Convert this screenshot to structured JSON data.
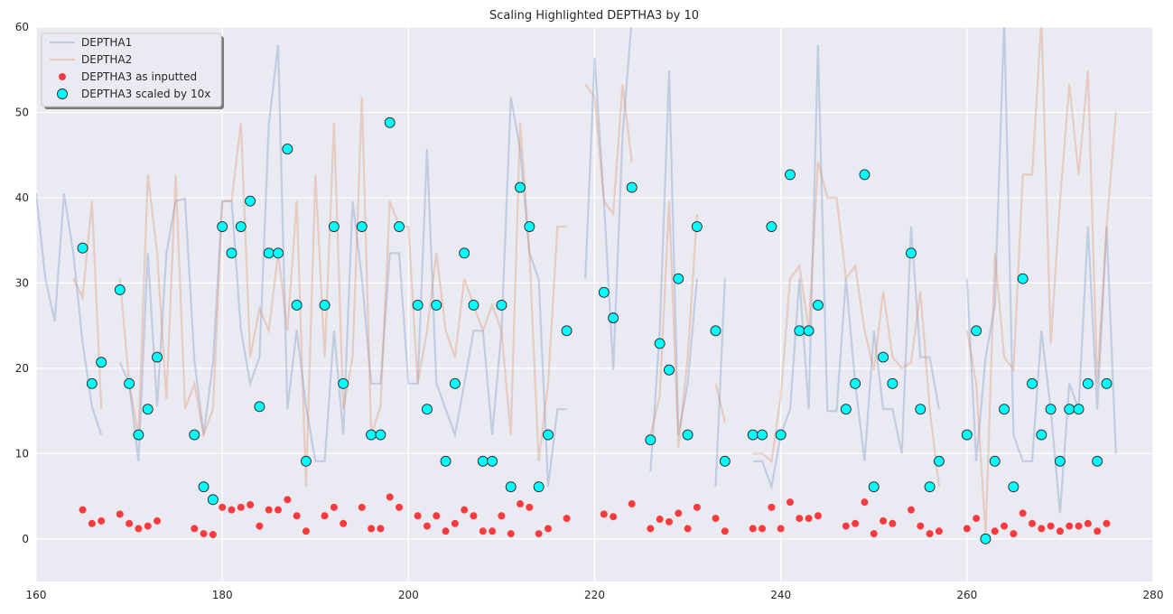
{
  "chart_data": {
    "type": "line",
    "title": "Scaling Highlighted DEPTHA3 by 10",
    "xlabel": "",
    "ylabel": "",
    "xlim": [
      160,
      280
    ],
    "ylim": [
      -5,
      60
    ],
    "xticks": [
      160,
      180,
      200,
      220,
      240,
      260,
      280
    ],
    "yticks": [
      0,
      10,
      20,
      30,
      40,
      50,
      60
    ],
    "grid": true,
    "legend_position": "top-left",
    "series": [
      {
        "name": "DEPTHA1",
        "kind": "line",
        "color": "#4c72b0",
        "x": [
          160,
          161,
          162,
          163,
          164,
          165,
          166,
          167,
          null,
          169,
          170,
          171,
          172,
          173,
          174,
          175,
          176,
          177,
          178,
          179,
          180,
          181,
          182,
          183,
          184,
          185,
          186,
          187,
          188,
          189,
          190,
          191,
          192,
          193,
          194,
          195,
          196,
          197,
          198,
          199,
          200,
          201,
          202,
          203,
          204,
          205,
          206,
          207,
          208,
          209,
          210,
          211,
          212,
          213,
          214,
          215,
          216,
          217,
          null,
          219,
          220,
          221,
          222,
          223,
          224,
          null,
          226,
          227,
          228,
          229,
          230,
          231,
          null,
          233,
          234,
          null,
          237,
          238,
          239,
          240,
          241,
          242,
          243,
          244,
          245,
          246,
          247,
          248,
          249,
          250,
          251,
          252,
          253,
          254,
          255,
          256,
          257,
          null,
          260,
          261,
          262,
          263,
          264,
          265,
          266,
          267,
          268,
          269,
          270,
          271,
          272,
          273,
          274,
          275,
          276
        ],
        "y": [
          40.5,
          30.5,
          25.5,
          40.5,
          33.5,
          23,
          15.5,
          12.2,
          null,
          20.7,
          18.2,
          9.1,
          33.5,
          15.5,
          33.5,
          39.6,
          39.9,
          21,
          12.2,
          20.7,
          39.6,
          39.6,
          24.5,
          18.2,
          21.3,
          48.6,
          57.9,
          15.2,
          24.5,
          15.5,
          9.1,
          9.1,
          24.4,
          12.2,
          39.6,
          30.5,
          18.2,
          18.2,
          33.5,
          33.5,
          18.2,
          18.2,
          45.7,
          18.2,
          15.2,
          12.2,
          18.2,
          24.4,
          24.4,
          12.2,
          24.4,
          51.8,
          45.7,
          33.5,
          30.5,
          6.1,
          15.2,
          15.2,
          null,
          30.5,
          56.4,
          39.6,
          19.8,
          47.3,
          61.0,
          null,
          7.9,
          24.5,
          54.9,
          12.2,
          18.2,
          30.5,
          null,
          6.1,
          30.5,
          null,
          9.1,
          9.1,
          6.1,
          12.2,
          15.2,
          30.5,
          15.2,
          57.9,
          15.0,
          15.0,
          30.5,
          18.2,
          9.1,
          24.4,
          15.2,
          15.2,
          10.0,
          36.6,
          21.3,
          21.3,
          15.2,
          null,
          30.5,
          9.1,
          21.3,
          27.4,
          61.0,
          12.2,
          9.1,
          9.1,
          24.4,
          15.2,
          3.0,
          18.2,
          15.2,
          36.6,
          15.2,
          36.6,
          10.0
        ]
      },
      {
        "name": "DEPTHA2",
        "kind": "line",
        "color": "#dd8452",
        "x": [
          164,
          165,
          166,
          167,
          null,
          169,
          170,
          171,
          172,
          173,
          174,
          175,
          176,
          177,
          178,
          179,
          180,
          181,
          182,
          183,
          184,
          185,
          186,
          187,
          188,
          189,
          190,
          191,
          192,
          193,
          194,
          195,
          196,
          197,
          198,
          199,
          200,
          201,
          202,
          203,
          204,
          205,
          206,
          207,
          208,
          209,
          210,
          211,
          212,
          213,
          214,
          215,
          216,
          217,
          null,
          219,
          220,
          221,
          222,
          223,
          224,
          null,
          226,
          227,
          228,
          229,
          230,
          231,
          null,
          233,
          234,
          null,
          237,
          238,
          239,
          240,
          241,
          242,
          243,
          244,
          245,
          246,
          247,
          248,
          249,
          250,
          251,
          252,
          253,
          254,
          255,
          256,
          257,
          null,
          260,
          261,
          262,
          263,
          264,
          265,
          266,
          267,
          268,
          269,
          270,
          271,
          272,
          273,
          274,
          275,
          276
        ],
        "y": [
          30.5,
          28.3,
          39.6,
          15.2,
          null,
          30.5,
          18.2,
          12.2,
          42.7,
          33.5,
          16.4,
          42.7,
          15.2,
          18.2,
          12.2,
          15.2,
          39.6,
          39.6,
          48.8,
          21.3,
          27.0,
          24.4,
          33.5,
          24.4,
          39.6,
          6.1,
          42.7,
          21.3,
          48.8,
          15.2,
          21.3,
          51.8,
          12.2,
          15.5,
          39.6,
          36.6,
          36.6,
          18.2,
          24.4,
          33.5,
          24.4,
          21.3,
          30.5,
          27.4,
          24.4,
          27.4,
          24.4,
          12.2,
          48.8,
          33.5,
          9.1,
          18.2,
          36.6,
          36.6,
          null,
          53.3,
          51.8,
          39.6,
          38.1,
          53.3,
          44.2,
          null,
          12.2,
          16.8,
          39.6,
          10.7,
          21.3,
          38.1,
          null,
          18.2,
          13.7,
          null,
          10.0,
          10.0,
          9.1,
          16.8,
          30.5,
          32.0,
          24.4,
          44.2,
          40.0,
          40.0,
          30.5,
          32.0,
          24.4,
          19.8,
          29.0,
          21.3,
          20.0,
          20.7,
          29.0,
          15.2,
          6.1,
          null,
          24.4,
          18.2,
          0.5,
          33.5,
          21.3,
          19.8,
          42.7,
          42.7,
          61.0,
          22.9,
          39.6,
          53.3,
          42.7,
          54.9,
          18.2,
          36.6,
          50.0
        ]
      },
      {
        "name": "DEPTHA3 as inputted",
        "kind": "scatter",
        "color": "#ff0000",
        "x": [
          165,
          166,
          167,
          169,
          170,
          171,
          172,
          173,
          177,
          178,
          179,
          180,
          181,
          182,
          183,
          184,
          185,
          186,
          187,
          188,
          189,
          191,
          192,
          193,
          195,
          196,
          197,
          198,
          199,
          201,
          202,
          203,
          204,
          205,
          206,
          207,
          208,
          209,
          210,
          211,
          212,
          213,
          214,
          215,
          217,
          221,
          222,
          224,
          226,
          227,
          228,
          229,
          230,
          231,
          233,
          234,
          237,
          238,
          239,
          240,
          241,
          242,
          243,
          244,
          247,
          248,
          249,
          250,
          251,
          252,
          254,
          255,
          256,
          257,
          260,
          261,
          262,
          263,
          264,
          265,
          266,
          267,
          268,
          269,
          270,
          271,
          272,
          273,
          274,
          275
        ],
        "y": [
          3.4,
          1.8,
          2.1,
          2.9,
          1.8,
          1.2,
          1.5,
          2.1,
          1.2,
          0.6,
          0.5,
          3.7,
          3.4,
          3.7,
          4.0,
          1.5,
          3.4,
          3.4,
          4.6,
          2.7,
          0.9,
          2.7,
          3.7,
          1.8,
          3.7,
          1.2,
          1.2,
          4.9,
          3.7,
          2.7,
          1.5,
          2.7,
          0.9,
          1.8,
          3.4,
          2.7,
          0.9,
          0.9,
          2.7,
          0.6,
          4.1,
          3.7,
          0.6,
          1.2,
          2.4,
          2.9,
          2.6,
          4.1,
          1.2,
          2.3,
          2.0,
          3.0,
          1.2,
          3.7,
          2.4,
          0.9,
          1.2,
          1.2,
          3.7,
          1.2,
          4.3,
          2.4,
          2.4,
          2.7,
          1.5,
          1.8,
          4.3,
          0.6,
          2.1,
          1.8,
          3.4,
          1.5,
          0.6,
          0.9,
          1.2,
          2.4,
          0.1,
          0.9,
          1.5,
          0.6,
          3.0,
          1.8,
          1.2,
          1.5,
          0.9,
          1.5,
          1.5,
          1.8,
          0.9,
          1.8
        ]
      },
      {
        "name": "DEPTHA3 scaled by 10x",
        "kind": "scatter",
        "color": "#00ffff",
        "x": [
          165,
          166,
          167,
          169,
          170,
          171,
          172,
          173,
          177,
          178,
          179,
          180,
          181,
          182,
          183,
          184,
          185,
          186,
          187,
          188,
          189,
          191,
          192,
          193,
          195,
          196,
          197,
          198,
          199,
          201,
          202,
          203,
          204,
          205,
          206,
          207,
          208,
          209,
          210,
          211,
          212,
          213,
          214,
          215,
          217,
          221,
          222,
          224,
          226,
          227,
          228,
          229,
          230,
          231,
          233,
          234,
          237,
          238,
          239,
          240,
          241,
          242,
          243,
          244,
          247,
          248,
          249,
          250,
          251,
          252,
          254,
          255,
          256,
          257,
          260,
          261,
          262,
          263,
          264,
          265,
          266,
          267,
          268,
          269,
          270,
          271,
          272,
          273,
          274,
          275
        ],
        "y": [
          34.1,
          18.2,
          20.7,
          29.2,
          18.2,
          12.2,
          15.2,
          21.3,
          12.2,
          6.1,
          4.6,
          36.6,
          33.5,
          36.6,
          39.6,
          15.5,
          33.5,
          33.5,
          45.7,
          27.4,
          9.1,
          27.4,
          36.6,
          18.2,
          36.6,
          12.2,
          12.2,
          48.8,
          36.6,
          27.4,
          15.2,
          27.4,
          9.1,
          18.2,
          33.5,
          27.4,
          9.1,
          9.1,
          27.4,
          6.1,
          41.2,
          36.6,
          6.1,
          12.2,
          24.4,
          28.9,
          25.9,
          41.2,
          11.6,
          22.9,
          19.8,
          30.5,
          12.2,
          36.6,
          24.4,
          9.1,
          12.2,
          12.2,
          36.6,
          12.2,
          42.7,
          24.4,
          24.4,
          27.4,
          15.2,
          18.2,
          42.7,
          6.1,
          21.3,
          18.2,
          33.5,
          15.2,
          6.1,
          9.1,
          12.2,
          24.4,
          0.0,
          9.1,
          15.2,
          6.1,
          30.5,
          18.2,
          12.2,
          15.2,
          9.1,
          15.2,
          15.2,
          18.2,
          9.1,
          18.2
        ]
      }
    ]
  }
}
